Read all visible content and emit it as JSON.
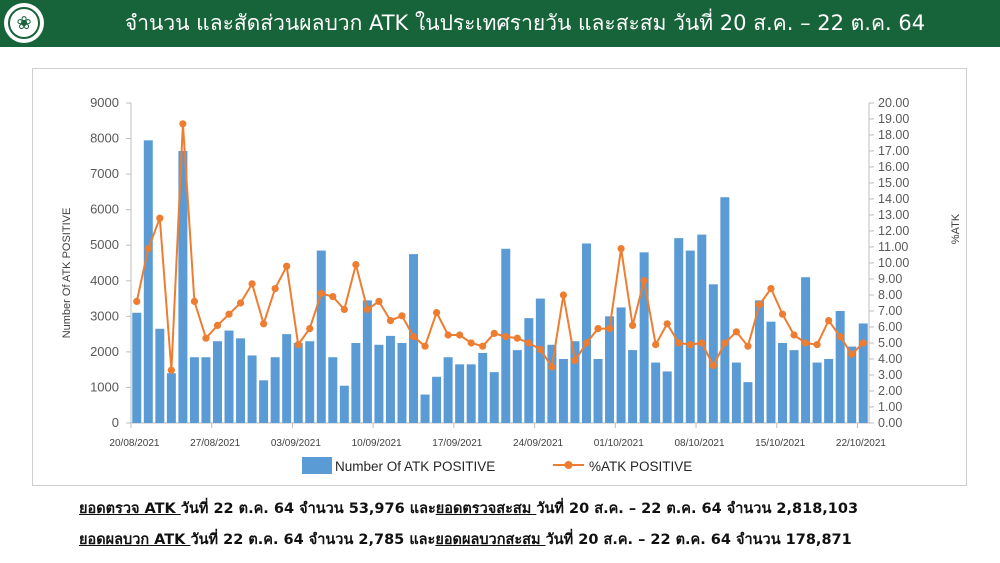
{
  "header": {
    "title": "จำนวน และสัดส่วนผลบวก ATK ในประเทศรายวัน และสะสม วันที่ 20 ส.ค. – 22 ต.ค. 64",
    "logo_icon": "ministry-of-public-health-logo-icon"
  },
  "colors": {
    "header_bg": "#17633a",
    "bar": "#5b9bd5",
    "line": "#ed7d31"
  },
  "chart_data": {
    "type": "bar",
    "ylabel": "Number Of ATK POSITIVE",
    "y2label": "%ATK",
    "ylim": [
      0,
      9000
    ],
    "y2lim": [
      0,
      20
    ],
    "y_ticks": [
      "0",
      "1000",
      "2000",
      "3000",
      "4000",
      "5000",
      "6000",
      "7000",
      "8000",
      "9000"
    ],
    "y2_ticks": [
      "0.00",
      "1.00",
      "2.00",
      "3.00",
      "4.00",
      "5.00",
      "6.00",
      "7.00",
      "8.00",
      "9.00",
      "10.00",
      "11.00",
      "12.00",
      "13.00",
      "14.00",
      "15.00",
      "16.00",
      "17.00",
      "18.00",
      "19.00",
      "20.00"
    ],
    "x_tick_labels": [
      "20/08/2021",
      "27/08/2021",
      "03/09/2021",
      "10/09/2021",
      "17/09/2021",
      "24/09/2021",
      "01/10/2021",
      "08/10/2021",
      "15/10/2021",
      "22/10/2021"
    ],
    "x_tick_indices": [
      0,
      7,
      14,
      21,
      28,
      35,
      42,
      49,
      56,
      63
    ],
    "legend": [
      "Number Of ATK POSITIVE",
      "%ATK POSITIVE"
    ],
    "legend_position": "bottom",
    "grid": false,
    "series": [
      {
        "name": "Number Of ATK POSITIVE",
        "type": "bar",
        "values": [
          3100,
          7950,
          2650,
          1400,
          7650,
          1850,
          1850,
          2300,
          2600,
          2380,
          1900,
          1200,
          1850,
          2500,
          2250,
          2300,
          4850,
          1850,
          1050,
          2250,
          3450,
          2200,
          2450,
          2250,
          4750,
          800,
          1300,
          1850,
          1650,
          1650,
          1970,
          1430,
          4900,
          2050,
          2950,
          3500,
          2200,
          1800,
          2300,
          5050,
          1800,
          3000,
          3250,
          2050,
          4800,
          1700,
          1450,
          5200,
          4850,
          5300,
          3900,
          6350,
          1700,
          1150,
          3450,
          2850,
          2250,
          2050,
          4100,
          1700,
          1800,
          3150,
          2150,
          2800
        ]
      },
      {
        "name": "%ATK POSITIVE",
        "type": "line",
        "axis": "right",
        "values": [
          7.6,
          10.9,
          12.8,
          3.3,
          18.7,
          7.6,
          5.3,
          6.1,
          6.8,
          7.5,
          8.7,
          6.2,
          8.4,
          9.8,
          4.9,
          5.9,
          8.1,
          7.9,
          7.1,
          9.9,
          7.1,
          7.6,
          6.4,
          6.7,
          5.4,
          4.8,
          6.9,
          5.5,
          5.5,
          5.0,
          4.8,
          5.6,
          5.4,
          5.3,
          5.0,
          4.6,
          3.5,
          8.0,
          3.9,
          5.0,
          5.9,
          5.9,
          10.9,
          6.1,
          8.9,
          4.9,
          6.2,
          5.0,
          4.9,
          5.0,
          3.6,
          5.0,
          5.7,
          4.8,
          7.4,
          8.4,
          6.8,
          5.5,
          5.0,
          4.9,
          6.4,
          5.4,
          4.3,
          5.0
        ]
      }
    ]
  },
  "footer": {
    "line1": {
      "label1": "ยอดตรวจ ATK ",
      "text1": "วันที่ 22 ต.ค. 64 จำนวน 53,976 และ",
      "label2": "ยอดตรวจสะสม ",
      "text2": "วันที่ 20 ส.ค. – 22 ต.ค. 64 จำนวน 2,818,103"
    },
    "line2": {
      "label1": "ยอดผลบวก ATK ",
      "text1": "วันที่ 22 ต.ค. 64 จำนวน 2,785 และ",
      "label2": "ยอดผลบวกสะสม ",
      "text2": "วันที่ 20 ส.ค. – 22 ต.ค. 64 จำนวน 178,871"
    }
  }
}
